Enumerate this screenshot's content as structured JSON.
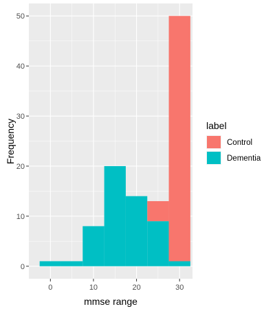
{
  "chart_data": {
    "type": "bar",
    "subtype": "stacked-histogram",
    "xlabel": "mmse range",
    "ylabel": "Frequency",
    "xlim": [
      -5,
      33
    ],
    "ylim": [
      -2.5,
      52.5
    ],
    "x_ticks": [
      0,
      10,
      20,
      30
    ],
    "y_ticks": [
      0,
      10,
      20,
      30,
      40,
      50
    ],
    "grid": true,
    "legend_title": "label",
    "legend_position": "right",
    "bins": [
      {
        "from": -2.5,
        "to": 2.5,
        "Control": 0,
        "Dementia": 1
      },
      {
        "from": 2.5,
        "to": 7.5,
        "Control": 0,
        "Dementia": 1
      },
      {
        "from": 7.5,
        "to": 12.5,
        "Control": 0,
        "Dementia": 8
      },
      {
        "from": 12.5,
        "to": 17.5,
        "Control": 0,
        "Dementia": 20
      },
      {
        "from": 17.5,
        "to": 22.5,
        "Control": 0,
        "Dementia": 14
      },
      {
        "from": 22.5,
        "to": 27.5,
        "Control": 4,
        "Dementia": 9
      },
      {
        "from": 27.5,
        "to": 32.5,
        "Control": 49,
        "Dementia": 1
      }
    ],
    "series": [
      {
        "name": "Control",
        "color": "#F8766D"
      },
      {
        "name": "Dementia",
        "color": "#00BFC4"
      }
    ]
  }
}
